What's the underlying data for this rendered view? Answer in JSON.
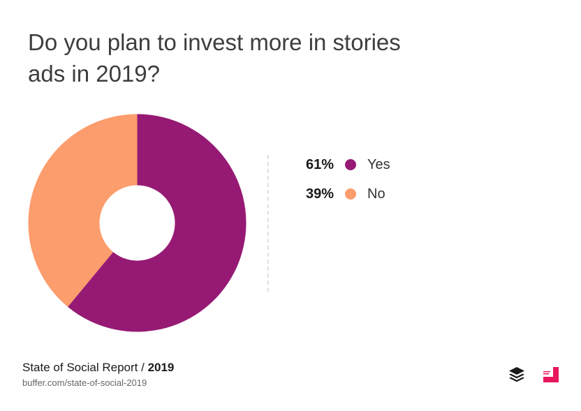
{
  "title": "Do you plan to invest more in stories ads in 2019?",
  "chart_data": {
    "type": "pie",
    "title": "Do you plan to invest more in stories ads in 2019?",
    "categories": [
      "Yes",
      "No"
    ],
    "values": [
      61,
      39
    ],
    "value_labels": [
      "61%",
      "39%"
    ],
    "colors": [
      "#961a74",
      "#fc9d6d"
    ],
    "legend": "right"
  },
  "footer": {
    "report": "State of Social Report /",
    "year": "2019",
    "url": "buffer.com/state-of-social-2019"
  },
  "logos": {
    "buffer": "buffer-logo",
    "social_report": "social-report-logo"
  }
}
